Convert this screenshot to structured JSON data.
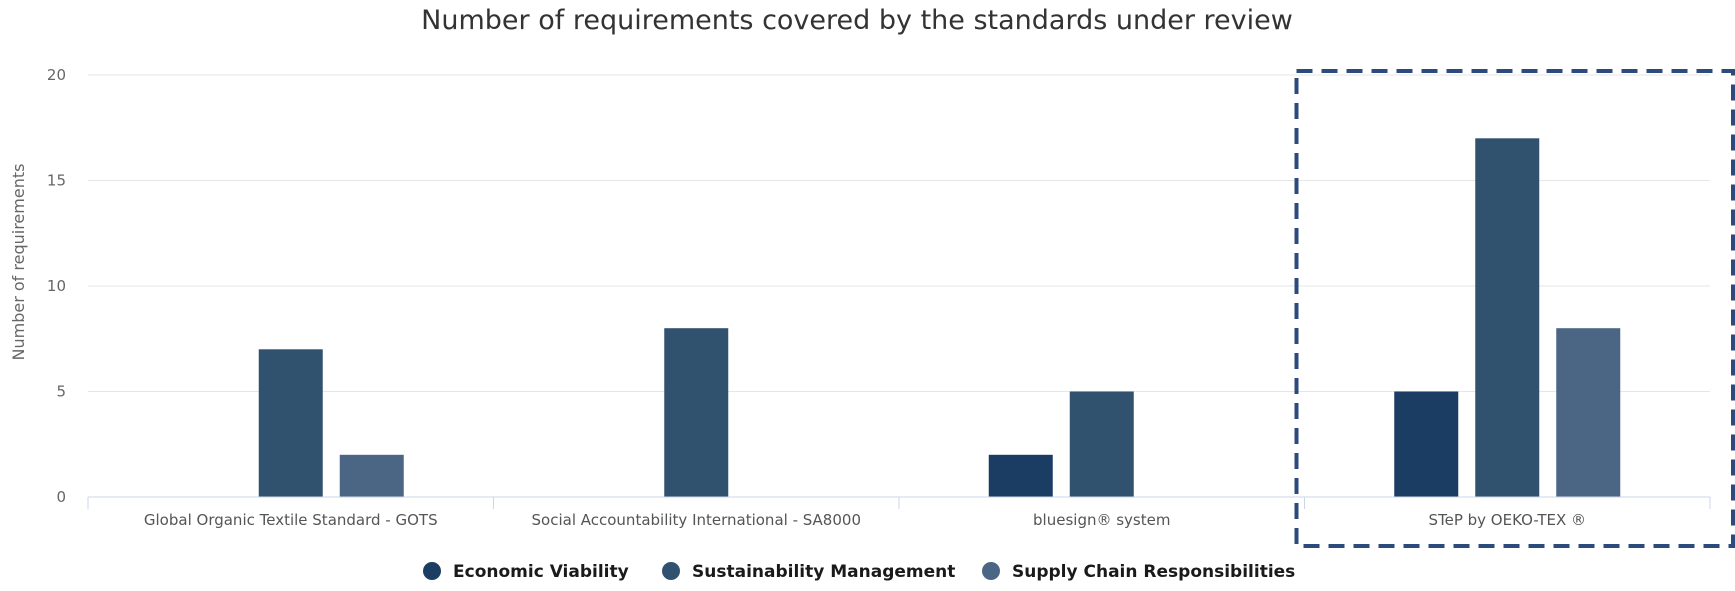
{
  "chart_data": {
    "type": "bar",
    "title": "Number of requirements covered by the standards under review",
    "ylabel": "Number of requirements",
    "xlabel": "",
    "ylim": [
      0,
      20
    ],
    "yticks": [
      "0",
      "5",
      "10",
      "15",
      "20"
    ],
    "grid": true,
    "legend_position": "bottom-center",
    "categories": [
      "Global Organic Textile Standard - GOTS",
      "Social Accountability International - SA8000",
      "bluesign® system",
      "STeP by OEKO-TEX ®"
    ],
    "series": [
      {
        "name": "Economic Viability",
        "color": "#1b3d63",
        "values": [
          0,
          0,
          2,
          5
        ]
      },
      {
        "name": "Sustainability Management",
        "color": "#31526f",
        "values": [
          7,
          8,
          5,
          17
        ]
      },
      {
        "name": "Supply Chain Responsibilities",
        "color": "#4b6684",
        "values": [
          2,
          0,
          0,
          8
        ]
      }
    ],
    "highlight": {
      "category_index": 3,
      "style": "dashed-box",
      "color": "#2c4a7c"
    }
  }
}
